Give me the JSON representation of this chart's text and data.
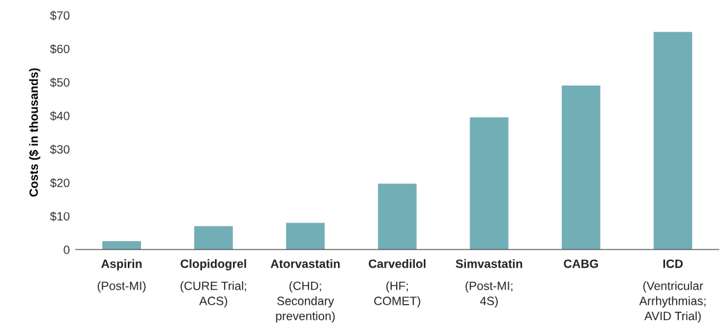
{
  "chart_data": {
    "type": "bar",
    "ylabel": "Costs ($ in thousands)",
    "categories": [
      "Aspirin\n(Post-MI)",
      "Clopidogrel\n(CURE Trial;\nACS)",
      "Atorvastatin\n(CHD;\nSecondary\nprevention)",
      "Carvedilol\n(HF;\nCOMET)",
      "Simvastatin\n(Post-MI;\n4S)",
      "CABG",
      "ICD\n(Ventricular\nArrhythmias;\nAVID Trial)"
    ],
    "values": [
      2.5,
      7,
      8,
      19.7,
      39.5,
      49,
      65
    ],
    "color": "#72aeb6",
    "ylim": [
      0,
      70
    ],
    "yticks": [
      0,
      {
        "value": 10,
        "label": "$10"
      },
      {
        "value": 20,
        "label": "$20"
      },
      {
        "value": 30,
        "label": "$30"
      },
      {
        "value": 40,
        "label": "$40"
      },
      {
        "value": 50,
        "label": "$50"
      },
      {
        "value": 60,
        "label": "$60"
      },
      {
        "value": 70,
        "label": "$70"
      }
    ],
    "grid": false,
    "legend": false
  }
}
